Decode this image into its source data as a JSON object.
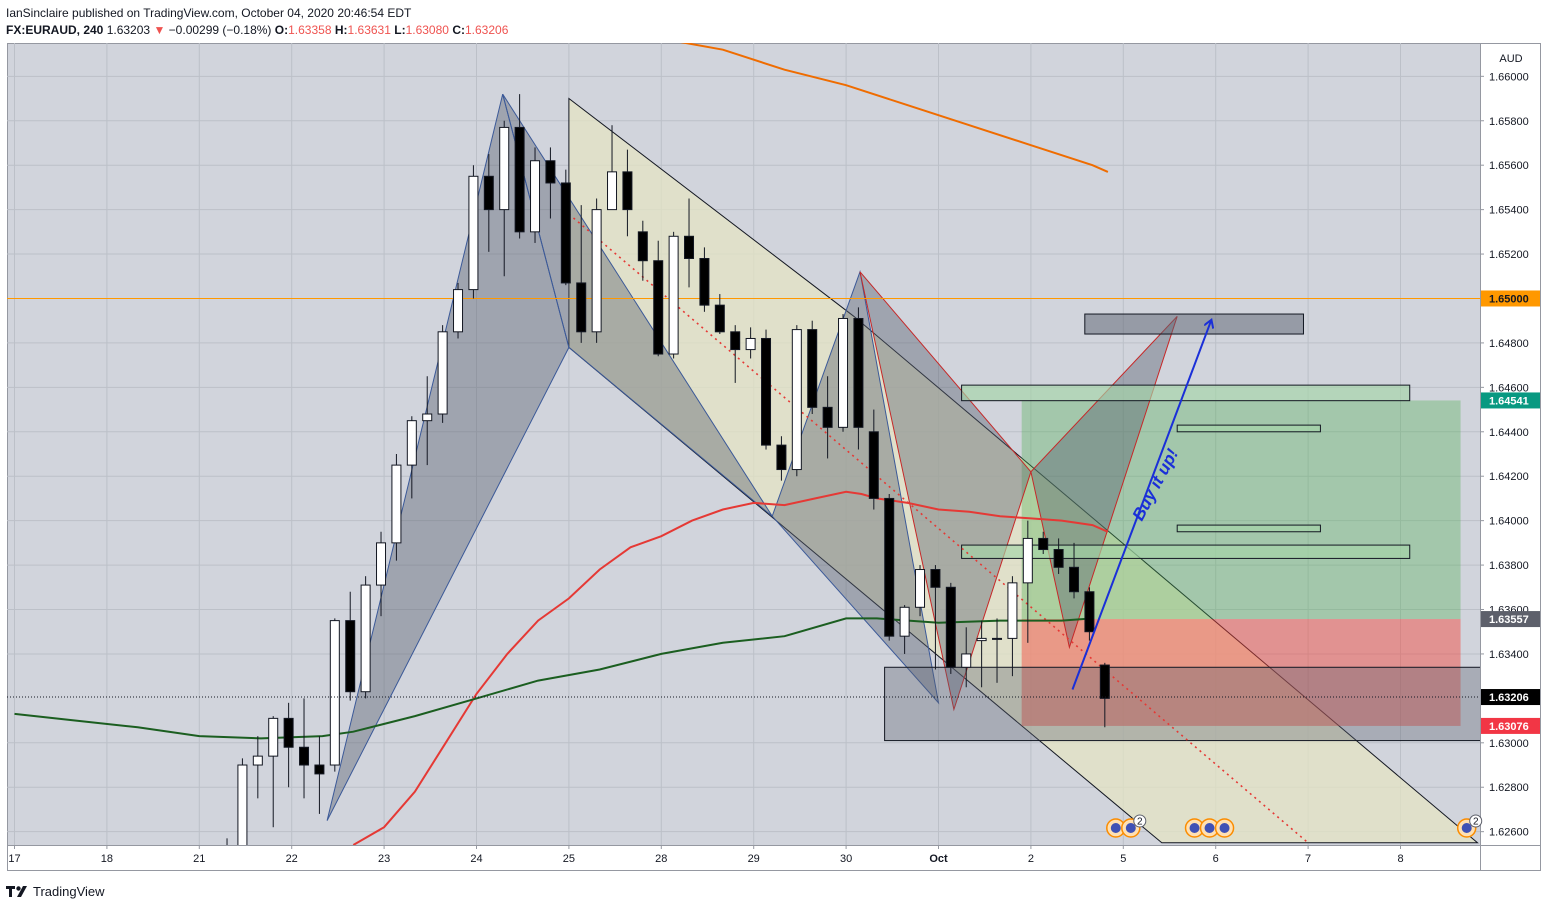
{
  "header": {
    "publisher_line": "IanSinclaire published on TradingView.com, October 04, 2020 20:46:54 EDT",
    "symbol": "FX:EURAUD, 240",
    "last": "1.63203",
    "arrow": "▼",
    "change": "−0.00299 (−0.18%)",
    "o_label": "O:",
    "o_value": "1.63358",
    "h_label": "H:",
    "h_value": "1.63631",
    "l_label": "L:",
    "l_value": "1.63080",
    "c_label": "C:",
    "c_value": "1.63206"
  },
  "footer": {
    "brand": "TradingView",
    "logo_icon": "tradingview-logo-icon"
  },
  "chart_data": {
    "type": "candlestick",
    "currency_label": "AUD",
    "ylim": [
      1.6254,
      1.6615
    ],
    "x_ticks": [
      {
        "i": 0,
        "label": "17"
      },
      {
        "i": 6,
        "label": "18"
      },
      {
        "i": 12,
        "label": "21"
      },
      {
        "i": 18,
        "label": "22"
      },
      {
        "i": 24,
        "label": "23"
      },
      {
        "i": 30,
        "label": "24"
      },
      {
        "i": 36,
        "label": "25"
      },
      {
        "i": 42,
        "label": "28"
      },
      {
        "i": 48,
        "label": "29"
      },
      {
        "i": 54,
        "label": "30"
      },
      {
        "i": 60,
        "label": "Oct"
      },
      {
        "i": 66,
        "label": "2"
      },
      {
        "i": 72,
        "label": "5"
      },
      {
        "i": 78,
        "label": "6"
      },
      {
        "i": 84,
        "label": "7"
      },
      {
        "i": 90,
        "label": "8"
      }
    ],
    "y_ticks": [
      "1.66000",
      "1.65800",
      "1.65600",
      "1.65400",
      "1.65200",
      "1.64800",
      "1.64600",
      "1.64400",
      "1.64200",
      "1.64000",
      "1.63800",
      "1.63600",
      "1.63400",
      "1.63000",
      "1.62800",
      "1.62600"
    ],
    "price_badges": [
      {
        "value": 1.65,
        "label": "1.65000",
        "color": "#ff9800",
        "text_color": "#131722"
      },
      {
        "value": 1.64541,
        "label": "1.64541",
        "color": "#089981",
        "text_color": "#ffffff"
      },
      {
        "value": 1.63557,
        "label": "1.63557",
        "color": "#5d606b",
        "text_color": "#ffffff"
      },
      {
        "value": 1.63206,
        "label": "1.63206",
        "color": "#000000",
        "text_color": "#ffffff"
      },
      {
        "value": 1.63076,
        "label": "1.63076",
        "color": "#f23645",
        "text_color": "#ffffff"
      }
    ],
    "horizontal_line": {
      "value": 1.65,
      "color": "#ff9800"
    },
    "last_price_line": 1.63206,
    "candles": [
      [
        13.8,
        1.624,
        1.6257,
        1.6233,
        1.6248
      ],
      [
        14.8,
        1.6248,
        1.6293,
        1.6244,
        1.629
      ],
      [
        15.8,
        1.629,
        1.6303,
        1.6275,
        1.6294
      ],
      [
        16.8,
        1.6294,
        1.6312,
        1.6262,
        1.6311
      ],
      [
        17.8,
        1.6311,
        1.6318,
        1.628,
        1.6298
      ],
      [
        18.8,
        1.6298,
        1.632,
        1.6275,
        1.629
      ],
      [
        19.8,
        1.629,
        1.6303,
        1.6268,
        1.6286
      ],
      [
        20.8,
        1.629,
        1.6356,
        1.6287,
        1.6355
      ],
      [
        21.8,
        1.6355,
        1.6368,
        1.6319,
        1.6323
      ],
      [
        22.8,
        1.6323,
        1.6375,
        1.632,
        1.6371
      ],
      [
        23.8,
        1.6371,
        1.6395,
        1.6357,
        1.639
      ],
      [
        24.8,
        1.639,
        1.643,
        1.6382,
        1.6425
      ],
      [
        25.8,
        1.6425,
        1.6447,
        1.641,
        1.6445
      ],
      [
        26.8,
        1.6445,
        1.6465,
        1.6425,
        1.6448
      ],
      [
        27.8,
        1.6448,
        1.6488,
        1.6444,
        1.6485
      ],
      [
        28.8,
        1.6485,
        1.6507,
        1.6482,
        1.6504
      ],
      [
        29.8,
        1.6504,
        1.656,
        1.65,
        1.6555
      ],
      [
        30.8,
        1.6555,
        1.6565,
        1.6521,
        1.654
      ],
      [
        31.8,
        1.654,
        1.658,
        1.651,
        1.6577
      ],
      [
        32.8,
        1.6577,
        1.6592,
        1.6527,
        1.653
      ],
      [
        33.8,
        1.653,
        1.6568,
        1.6525,
        1.6562
      ],
      [
        34.8,
        1.6562,
        1.6568,
        1.6536,
        1.6552
      ],
      [
        35.8,
        1.6552,
        1.6558,
        1.6506,
        1.6507
      ],
      [
        36.8,
        1.6507,
        1.6542,
        1.648,
        1.6485
      ],
      [
        37.8,
        1.6485,
        1.6545,
        1.648,
        1.654
      ],
      [
        38.8,
        1.654,
        1.6578,
        1.654,
        1.6557
      ],
      [
        39.8,
        1.6557,
        1.6567,
        1.6528,
        1.654
      ],
      [
        40.8,
        1.653,
        1.6535,
        1.6508,
        1.6517
      ],
      [
        41.8,
        1.6517,
        1.6526,
        1.6474,
        1.6475
      ],
      [
        42.8,
        1.6475,
        1.653,
        1.6473,
        1.6528
      ],
      [
        43.8,
        1.6528,
        1.6545,
        1.6505,
        1.6518
      ],
      [
        44.8,
        1.6518,
        1.6523,
        1.6494,
        1.6497
      ],
      [
        45.8,
        1.6497,
        1.6502,
        1.6484,
        1.6485
      ],
      [
        46.8,
        1.6485,
        1.6488,
        1.6462,
        1.6477
      ],
      [
        47.8,
        1.6477,
        1.6487,
        1.6473,
        1.6482
      ],
      [
        48.8,
        1.6482,
        1.6486,
        1.6432,
        1.6434
      ],
      [
        49.8,
        1.6434,
        1.6438,
        1.6418,
        1.6423
      ],
      [
        50.8,
        1.6423,
        1.6488,
        1.642,
        1.6486
      ],
      [
        51.8,
        1.6486,
        1.649,
        1.6448,
        1.6451
      ],
      [
        52.8,
        1.6451,
        1.6465,
        1.6428,
        1.6442
      ],
      [
        53.8,
        1.6442,
        1.6493,
        1.644,
        1.6491
      ],
      [
        54.8,
        1.6491,
        1.6496,
        1.6432,
        1.6442
      ],
      [
        55.8,
        1.644,
        1.645,
        1.6405,
        1.641
      ],
      [
        56.8,
        1.641,
        1.6412,
        1.6346,
        1.6348
      ],
      [
        57.8,
        1.6348,
        1.6362,
        1.634,
        1.6361
      ],
      [
        58.8,
        1.6361,
        1.638,
        1.6357,
        1.6378
      ],
      [
        59.8,
        1.6378,
        1.638,
        1.6333,
        1.637
      ],
      [
        60.8,
        1.637,
        1.6372,
        1.6331,
        1.6334
      ],
      [
        61.8,
        1.6334,
        1.6352,
        1.6325,
        1.634
      ],
      [
        62.8,
        1.6346,
        1.6355,
        1.6325,
        1.6347
      ],
      [
        63.8,
        1.6347,
        1.6356,
        1.6327,
        1.6347
      ],
      [
        64.8,
        1.6347,
        1.6375,
        1.633,
        1.6372
      ],
      [
        65.8,
        1.6372,
        1.64,
        1.6345,
        1.6392
      ],
      [
        66.8,
        1.6392,
        1.6395,
        1.6385,
        1.6387
      ],
      [
        67.8,
        1.6387,
        1.6392,
        1.6376,
        1.6379
      ],
      [
        68.8,
        1.6379,
        1.639,
        1.6365,
        1.6368
      ],
      [
        69.8,
        1.6368,
        1.637,
        1.6346,
        1.635
      ],
      [
        70.8,
        1.6335,
        1.6336,
        1.6307,
        1.632
      ]
    ],
    "ma_series": [
      {
        "color": "#e53935",
        "points": [
          [
            22,
            1.6254
          ],
          [
            24,
            1.6262
          ],
          [
            26,
            1.6278
          ],
          [
            28,
            1.63
          ],
          [
            30,
            1.6322
          ],
          [
            32,
            1.634
          ],
          [
            34,
            1.6355
          ],
          [
            36,
            1.6365
          ],
          [
            38,
            1.6378
          ],
          [
            40,
            1.6388
          ],
          [
            42,
            1.6393
          ],
          [
            44,
            1.64
          ],
          [
            46,
            1.6405
          ],
          [
            48,
            1.6408
          ],
          [
            50,
            1.6407
          ],
          [
            52,
            1.641
          ],
          [
            54,
            1.6413
          ],
          [
            55,
            1.6412
          ],
          [
            56,
            1.641
          ],
          [
            58,
            1.6408
          ],
          [
            60,
            1.6405
          ],
          [
            62,
            1.6404
          ],
          [
            64,
            1.6402
          ],
          [
            66,
            1.6401
          ],
          [
            68,
            1.64
          ],
          [
            70,
            1.6398
          ],
          [
            71,
            1.6395
          ]
        ]
      },
      {
        "color": "#1b5e20",
        "points": [
          [
            0,
            1.6313
          ],
          [
            4,
            1.631
          ],
          [
            8,
            1.6307
          ],
          [
            12,
            1.6303
          ],
          [
            16,
            1.6302
          ],
          [
            20,
            1.6303
          ],
          [
            22,
            1.6305
          ],
          [
            26,
            1.6312
          ],
          [
            30,
            1.632
          ],
          [
            34,
            1.6328
          ],
          [
            38,
            1.6333
          ],
          [
            42,
            1.634
          ],
          [
            46,
            1.6345
          ],
          [
            50,
            1.6348
          ],
          [
            54,
            1.6356
          ],
          [
            56,
            1.6356
          ],
          [
            60,
            1.6354
          ],
          [
            64,
            1.6355
          ],
          [
            68,
            1.6355
          ],
          [
            70,
            1.6356
          ]
        ]
      },
      {
        "color": "#ef6c00",
        "points": [
          [
            42,
            1.6617
          ],
          [
            46,
            1.6612
          ],
          [
            50,
            1.6603
          ],
          [
            54,
            1.6596
          ],
          [
            58,
            1.6587
          ],
          [
            62,
            1.6578
          ],
          [
            66,
            1.6569
          ],
          [
            70,
            1.656
          ],
          [
            71,
            1.6557
          ]
        ]
      }
    ],
    "harmonic_patterns": [
      {
        "fill": "#5b6170",
        "opacity": 0.42,
        "stroke": "#3b5998",
        "triangles": [
          [
            [
              20.3,
              1.6265
            ],
            [
              31.7,
              1.6592
            ],
            [
              36,
              1.6478
            ]
          ],
          [
            [
              36,
              1.6478
            ],
            [
              31.7,
              1.6592
            ],
            [
              49.2,
              1.6402
            ]
          ]
        ]
      },
      {
        "fill": "#5b6170",
        "opacity": 0.42,
        "stroke": "#3b5998",
        "triangles": [
          [
            [
              49.2,
              1.6402
            ],
            [
              54.9,
              1.6512
            ],
            [
              60,
              1.6318
            ]
          ]
        ]
      },
      {
        "fill": "#5b6170",
        "opacity": 0.42,
        "stroke": "#c62828",
        "triangles": [
          [
            [
              54.9,
              1.6512
            ],
            [
              61,
              1.6315
            ],
            [
              66,
              1.6422
            ]
          ],
          [
            [
              66,
              1.6422
            ],
            [
              68.5,
              1.6343
            ],
            [
              75.5,
              1.6492
            ]
          ]
        ]
      }
    ],
    "channel": {
      "fill": "#e4e4c4",
      "opacity": 0.75,
      "stroke": "#131722",
      "points": [
        [
          36,
          1.659
        ],
        [
          36,
          1.6478
        ],
        [
          74.5,
          1.6255
        ],
        [
          95,
          1.6255
        ],
        [
          54.5,
          1.6492
        ]
      ]
    },
    "dotted_trend": {
      "color": "#e53935",
      "points": [
        [
          36,
          1.6538
        ],
        [
          84,
          1.6255
        ]
      ]
    },
    "position_tool": {
      "x_start": 65.4,
      "x_end": 93.9,
      "entry": 1.63557,
      "target": 1.64541,
      "stop": 1.63076,
      "profit_color": "#4caf50",
      "loss_color": "#f44336"
    },
    "zones": [
      {
        "x1": 69.5,
        "x2": 83.7,
        "top": 1.6493,
        "bottom": 1.6484,
        "fill": "#5b6170",
        "opacity": 0.5
      },
      {
        "x1": 61.5,
        "x2": 90.6,
        "top": 1.6461,
        "bottom": 1.6454,
        "fill": "#a5d6a7",
        "opacity": 0.65
      },
      {
        "x1": 75.5,
        "x2": 84.8,
        "top": 1.6443,
        "bottom": 1.644,
        "fill": "#a5d6a7",
        "opacity": 0.65
      },
      {
        "x1": 75.5,
        "x2": 84.8,
        "top": 1.6398,
        "bottom": 1.6395,
        "fill": "#a5d6a7",
        "opacity": 0.65
      },
      {
        "x1": 61.5,
        "x2": 90.6,
        "top": 1.6389,
        "bottom": 1.6383,
        "fill": "#a5d6a7",
        "opacity": 0.65
      },
      {
        "x1": 56.5,
        "x2": 96.0,
        "top": 1.6334,
        "bottom": 1.6301,
        "fill": "#5b6170",
        "opacity": 0.35
      }
    ],
    "arrow": {
      "from": [
        68.7,
        1.6324
      ],
      "to": [
        77.7,
        1.649
      ],
      "color": "#1a2fd8"
    },
    "annotation": {
      "text": "Buy it up!",
      "at": [
        74.4,
        1.6415
      ],
      "color": "#1a2fd8"
    },
    "event_markers": [
      {
        "i": 72.0,
        "count": "2",
        "icons": 2
      },
      {
        "i": 77.6,
        "count": "",
        "icons": 3
      },
      {
        "i": 94.3,
        "count": "2",
        "icons": 1
      }
    ]
  }
}
